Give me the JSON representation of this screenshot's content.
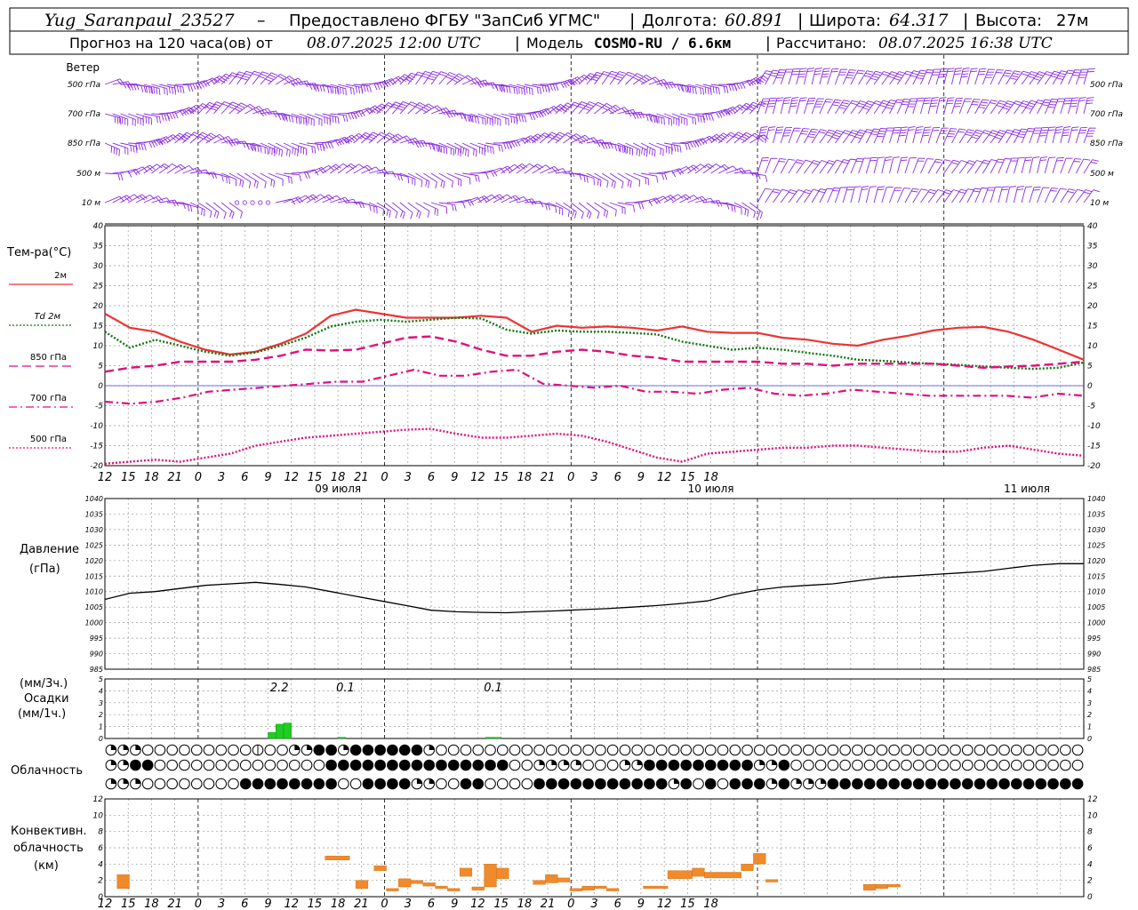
{
  "header": {
    "station": "Yug_Saranpaul_23527",
    "dash": " – ",
    "provider": "Предоставлено ФГБУ \"ЗапСиб УГМС\"",
    "lon_label": "Долгота:",
    "lon_value": "60.891",
    "lat_label": "Широта:",
    "lat_value": "64.317",
    "alt_label": "Высота:",
    "alt_value": "27м",
    "forecast_label": "Прогноз на 120 часа(ов)  от",
    "forecast_start": "08.07.2025 12:00 UTC",
    "model_label": "Модель",
    "model_value": "COSMO-RU / 6.6км",
    "calc_label": "Рассчитано:",
    "calc_value": "08.07.2025 16:38 UTC"
  },
  "x_hour_labels": [
    "12",
    "15",
    "18",
    "21",
    "0",
    "3",
    "6",
    "9",
    "12",
    "15",
    "18",
    "21",
    "0",
    "3",
    "6",
    "9",
    "12",
    "15",
    "18",
    "21",
    "0",
    "3",
    "6",
    "9",
    "12",
    "15",
    "18"
  ],
  "day_labels": [
    "09 июля",
    "10 июля",
    "11 июля"
  ],
  "wind_panel": {
    "title": "Ветер",
    "levels": [
      "500 гПа",
      "700 гПа",
      "850 гПа",
      "500 м",
      "10  м"
    ],
    "color": "#8a2be2"
  },
  "temp_panel": {
    "title": "Тем-ра(°С)",
    "legend": [
      {
        "label": "2м",
        "color": "#ee3333",
        "style": "solid"
      },
      {
        "label": "Td  2м",
        "color": "#117711",
        "style": "dotted"
      },
      {
        "label": "850 гПа",
        "color": "#e0107a",
        "style": "dashed"
      },
      {
        "label": "700 гПа",
        "color": "#e0107a",
        "style": "dashdot"
      },
      {
        "label": "500 гПа",
        "color": "#e0107a",
        "style": "dotted"
      }
    ],
    "y_ticks": [
      "40",
      "35",
      "30",
      "25",
      "20",
      "15",
      "10",
      "5",
      "0",
      "-5",
      "-10",
      "-15",
      "-20"
    ]
  },
  "pressure_panel": {
    "title": "Давление",
    "unit": "(гПа)",
    "y_ticks": [
      "1040",
      "1035",
      "1030",
      "1025",
      "1020",
      "1015",
      "1010",
      "1005",
      "1000",
      "995",
      "990",
      "985"
    ]
  },
  "precip_panel": {
    "unit_top": "(мм/3ч.)",
    "title": "Осадки",
    "unit_bottom": "(мм/1ч.)",
    "y_ticks": [
      "5",
      "4",
      "3",
      "2",
      "1",
      "0"
    ],
    "annotations": [
      "2.2",
      "0.1",
      "0.1"
    ],
    "color": "#22cc22"
  },
  "cloud_panel": {
    "title": "Облачность"
  },
  "conv_panel": {
    "title_1": "Конвективн.",
    "title_2": "облачность",
    "unit": "(км)",
    "y_ticks": [
      "12",
      "10",
      "8",
      "6",
      "4",
      "2",
      "0"
    ],
    "color": "#f08a2a"
  },
  "chart_data": [
    {
      "type": "line",
      "title": "Тем-ра(°С)",
      "x_hours": [
        0,
        3,
        6,
        9,
        12,
        15,
        18,
        21,
        24,
        27,
        30,
        33,
        36,
        39,
        42,
        45,
        48,
        51,
        54,
        57,
        60,
        63,
        66,
        69,
        72,
        75,
        78,
        81,
        84,
        87,
        90,
        93,
        96,
        99,
        102,
        105,
        108,
        111,
        114,
        117,
        120,
        123,
        126
      ],
      "ylim": [
        -20,
        40
      ],
      "series": [
        {
          "name": "2м",
          "values": [
            18,
            14.5,
            13.5,
            11,
            9,
            7.8,
            8.5,
            10.5,
            13,
            17.5,
            19,
            18,
            17,
            17,
            17,
            17.5,
            17,
            13.5,
            15,
            14.5,
            14.8,
            14.5,
            13.8,
            14.8,
            13.5,
            13.2,
            13.2,
            12,
            11.5,
            10.5,
            10,
            11.5,
            12.5,
            13.8,
            14.5,
            14.7,
            13.5,
            11.5,
            9,
            6.5
          ]
        },
        {
          "name": "Td  2м",
          "values": [
            13.5,
            9.5,
            11.5,
            10,
            8.5,
            7.5,
            8.3,
            10,
            12,
            14.8,
            16,
            16.5,
            16,
            16.5,
            17,
            16.8,
            14,
            13,
            13.8,
            13.5,
            13.5,
            13.2,
            12.8,
            11,
            10,
            9,
            9.5,
            9,
            8.2,
            7.5,
            6.5,
            6.2,
            5.8,
            5.5,
            5.2,
            4.8,
            4.5,
            4.2,
            4.5,
            5.8
          ]
        },
        {
          "name": "850 гПа",
          "values": [
            3.5,
            4.5,
            5,
            6,
            6,
            6,
            6.5,
            7.5,
            9,
            8.8,
            9,
            10.5,
            12,
            12.3,
            11,
            9,
            7.5,
            7.5,
            8.5,
            9,
            8.5,
            7.5,
            7,
            6,
            6,
            6,
            6,
            5.5,
            5.5,
            5,
            5.5,
            5.5,
            5.5,
            5.5,
            5,
            4.5,
            4.8,
            5,
            5.5,
            6
          ]
        },
        {
          "name": "700 гПа",
          "values": [
            -4,
            -4.5,
            -4,
            -3,
            -1.5,
            -1,
            -0.5,
            0,
            0.5,
            1,
            1,
            2.5,
            4,
            2.5,
            2.5,
            3.5,
            4,
            0.5,
            0,
            -0.5,
            0,
            -1.5,
            -1.5,
            -2,
            -1,
            -0.5,
            -2,
            -2.5,
            -2,
            -1,
            -1.5,
            -2,
            -2.5,
            -2.5,
            -2.5,
            -2.5,
            -3,
            -2,
            -2.5
          ]
        },
        {
          "name": "500 гПа",
          "values": [
            -19.5,
            -19,
            -18.5,
            -19,
            -18,
            -17,
            -15,
            -14,
            -13,
            -12.5,
            -12,
            -11.5,
            -11,
            -10.8,
            -12,
            -13,
            -13,
            -12.5,
            -12,
            -12.5,
            -14,
            -16,
            -18,
            -19,
            -17,
            -16.5,
            -16,
            -15.5,
            -15.5,
            -15,
            -15,
            -15.5,
            -16,
            -16.5,
            -16.5,
            -15.5,
            -15,
            -16,
            -17,
            -17.5
          ]
        }
      ]
    },
    {
      "type": "line",
      "title": "Давление",
      "x_hours": [
        0,
        3,
        6,
        9,
        12,
        15,
        18,
        21,
        24,
        27,
        30,
        33,
        36,
        39,
        42,
        45,
        48,
        51,
        54,
        57,
        60,
        63,
        66,
        69,
        72,
        75,
        78,
        81,
        84,
        87,
        90,
        93,
        96,
        99,
        102,
        105,
        108,
        111,
        114,
        117,
        120,
        123,
        126
      ],
      "ylim": [
        985,
        1040
      ],
      "series": [
        {
          "name": "Давление",
          "values": [
            1007.5,
            1009.5,
            1010,
            1011,
            1012,
            1012.5,
            1013,
            1012.3,
            1011.5,
            1010,
            1008.5,
            1007,
            1005.5,
            1004,
            1003.5,
            1003.3,
            1003.2,
            1003.5,
            1003.8,
            1004.2,
            1004.5,
            1005,
            1005.5,
            1006.2,
            1007,
            1009,
            1010.5,
            1011.5,
            1012,
            1012.5,
            1013.5,
            1014.5,
            1015,
            1015.5,
            1016,
            1016.5,
            1017.5,
            1018.5,
            1019,
            1019
          ]
        }
      ]
    },
    {
      "type": "bar",
      "title": "Осадки",
      "ylim": [
        0,
        5
      ],
      "bars": [
        {
          "x": 21,
          "value": 0.5
        },
        {
          "x": 22,
          "value": 1.2
        },
        {
          "x": 23,
          "value": 1.3
        },
        {
          "x": 30,
          "value": 0.1
        },
        {
          "x": 49,
          "value": 0.1
        },
        {
          "x": 50,
          "value": 0.1
        }
      ],
      "annotations": [
        {
          "x": 22,
          "text": "2.2"
        },
        {
          "x": 30.5,
          "text": "0.1"
        },
        {
          "x": 49.5,
          "text": "0.1"
        }
      ]
    },
    {
      "type": "table",
      "title": "Облачность",
      "rows": [
        "1110000000004001122122222210000000000000000000000000000000000000000000000000000000000000000000",
        "1122000000000000002222222222222220011110001122222222211200000000000000000000000000000000000000",
        "1110000000022222222002222110022000022222222222120202221211122222222222222222222222222222222222"
      ]
    },
    {
      "type": "bar",
      "title": "Конвективн. облачность",
      "ylim": [
        0,
        12
      ],
      "blocks": [
        {
          "x0": 1,
          "x1": 2,
          "bottom": 1,
          "top": 2.7
        },
        {
          "x0": 18,
          "x1": 20,
          "bottom": 4.5,
          "top": 5
        },
        {
          "x0": 20.5,
          "x1": 21.5,
          "bottom": 1,
          "top": 2
        },
        {
          "x0": 22,
          "x1": 23,
          "bottom": 3.2,
          "top": 3.8
        },
        {
          "x0": 23,
          "x1": 24,
          "bottom": 0.7,
          "top": 1
        },
        {
          "x0": 24,
          "x1": 25,
          "bottom": 1.2,
          "top": 2.2
        },
        {
          "x0": 25,
          "x1": 26,
          "bottom": 1.6,
          "top": 2
        },
        {
          "x0": 26,
          "x1": 27,
          "bottom": 1.3,
          "top": 1.7
        },
        {
          "x0": 27,
          "x1": 28,
          "bottom": 1,
          "top": 1.3
        },
        {
          "x0": 28,
          "x1": 29,
          "bottom": 0.7,
          "top": 1
        },
        {
          "x0": 29,
          "x1": 30,
          "bottom": 2.5,
          "top": 3.5
        },
        {
          "x0": 30,
          "x1": 31,
          "bottom": 0.8,
          "top": 1.2
        },
        {
          "x0": 31,
          "x1": 32,
          "bottom": 1.2,
          "top": 4
        },
        {
          "x0": 32,
          "x1": 33,
          "bottom": 2.2,
          "top": 3.5
        },
        {
          "x0": 35,
          "x1": 36,
          "bottom": 1.5,
          "top": 2
        },
        {
          "x0": 36,
          "x1": 37,
          "bottom": 1.7,
          "top": 2.7
        },
        {
          "x0": 37,
          "x1": 38,
          "bottom": 1.8,
          "top": 2.3
        },
        {
          "x0": 38,
          "x1": 39,
          "bottom": 0.7,
          "top": 1
        },
        {
          "x0": 39,
          "x1": 40,
          "bottom": 0.8,
          "top": 1.3
        },
        {
          "x0": 40,
          "x1": 41,
          "bottom": 1,
          "top": 1.3
        },
        {
          "x0": 41,
          "x1": 42,
          "bottom": 0.7,
          "top": 1
        },
        {
          "x0": 44,
          "x1": 46,
          "bottom": 1,
          "top": 1.3
        },
        {
          "x0": 46,
          "x1": 48,
          "bottom": 2.2,
          "top": 3.2
        },
        {
          "x0": 48,
          "x1": 49,
          "bottom": 2.5,
          "top": 3.5
        },
        {
          "x0": 49,
          "x1": 52,
          "bottom": 2.3,
          "top": 3
        },
        {
          "x0": 52,
          "x1": 53,
          "bottom": 3.2,
          "top": 4
        },
        {
          "x0": 53,
          "x1": 54,
          "bottom": 4,
          "top": 5.3
        },
        {
          "x0": 54,
          "x1": 55,
          "bottom": 1.8,
          "top": 2.1
        },
        {
          "x0": 62,
          "x1": 63,
          "bottom": 0.8,
          "top": 1.5
        },
        {
          "x0": 63,
          "x1": 64,
          "bottom": 1,
          "top": 1.5
        },
        {
          "x0": 64,
          "x1": 65,
          "bottom": 1.2,
          "top": 1.5
        }
      ]
    }
  ]
}
